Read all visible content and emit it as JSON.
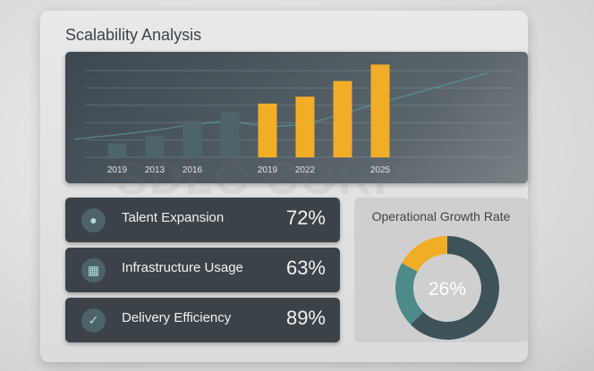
{
  "title": "Scalability Analysis",
  "watermark": "SDLC CORP",
  "metrics": [
    {
      "label": "Talent Expansion",
      "value": "72%",
      "icon": "person-icon"
    },
    {
      "label": "Infrastructure Usage",
      "value": "63%",
      "icon": "building-icon"
    },
    {
      "label": "Delivery Efficiency",
      "value": "89%",
      "icon": "check-icon"
    }
  ],
  "colors": {
    "gold": "#f2ad26",
    "slate": "#4d646b",
    "dark": "#3e525a",
    "teal": "#4f8a8b"
  },
  "chart_data": [
    {
      "type": "bar",
      "categories": [
        "2019",
        "2013",
        "2016",
        "",
        "2019",
        "2022",
        "",
        "2025"
      ],
      "series": [
        {
          "values": [
            0.8,
            1.25,
            2.1,
            2.6,
            3.1,
            3.5,
            4.4,
            5.35
          ]
        },
        {
          "type": "line",
          "values": [
            1.3,
            1.55,
            1.9,
            2.1,
            1.75,
            1.9,
            2.5,
            3.15
          ]
        }
      ],
      "bar_colors": [
        "#4d646b",
        "#4d646b",
        "#4d646b",
        "#4d646b",
        "#f2ad26",
        "#f2ad26",
        "#f2ad26",
        "#f2ad26"
      ],
      "ylim": [
        0,
        5.1
      ],
      "grid": true
    },
    {
      "type": "pie",
      "title": "Operational Growth Rate",
      "center_label": "26%",
      "slices": [
        {
          "value": 0.625,
          "color": "#3e525a"
        },
        {
          "value": 0.205,
          "color": "#4f8a8b"
        },
        {
          "value": 0.17,
          "color": "#f2ad26"
        }
      ]
    }
  ]
}
